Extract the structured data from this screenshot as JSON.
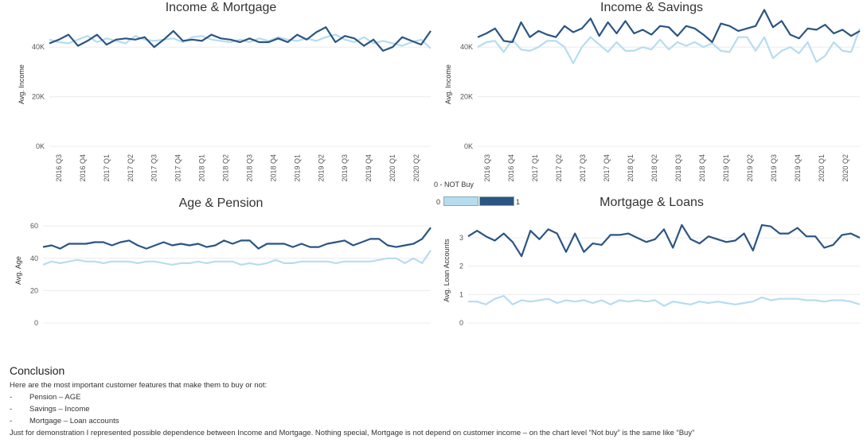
{
  "colors": {
    "buy": "#2b5583",
    "not_buy": "#b7dcf0",
    "grid": "#ececec"
  },
  "quarters": [
    "2016 Q3",
    "2016 Q4",
    "2017 Q1",
    "2017 Q2",
    "2017 Q3",
    "2017 Q4",
    "2018 Q1",
    "2018 Q2",
    "2018 Q3",
    "2018 Q4",
    "2019 Q1",
    "2019 Q2",
    "2019 Q3",
    "2019 Q4",
    "2020 Q1",
    "2020 Q2"
  ],
  "legend": {
    "title": "0 - NOT Buy",
    "min": "0",
    "max": "1"
  },
  "chart_data": [
    {
      "type": "line",
      "title": "Income & Mortgage",
      "ylabel": "Avg. Income",
      "yticks": [
        0,
        20000,
        40000
      ],
      "ytick_labels": [
        "0K",
        "20K",
        "40K"
      ],
      "ylim": [
        0,
        50000
      ],
      "series": [
        {
          "name": "1",
          "values": [
            41500,
            43000,
            45000,
            40500,
            42500,
            45000,
            41000,
            43000,
            43500,
            43000,
            44000,
            40000,
            43000,
            46500,
            42500,
            43000,
            42500,
            45000,
            43500,
            43000,
            42000,
            43500,
            42000,
            42000,
            43500,
            42000,
            45000,
            43000,
            46000,
            48000,
            42000,
            44500,
            43500,
            40500,
            43000,
            38500,
            40000,
            44000,
            42500,
            41000,
            46500
          ]
        },
        {
          "name": "0",
          "values": [
            43000,
            42000,
            41500,
            43000,
            44500,
            42000,
            43500,
            42500,
            41500,
            44500,
            43000,
            42500,
            43000,
            43500,
            42000,
            44000,
            44500,
            43000,
            42500,
            42000,
            43000,
            42000,
            43500,
            42500,
            44000,
            43000,
            42500,
            43500,
            42500,
            44000,
            45000,
            43000,
            42000,
            44000,
            41500,
            42500,
            41500,
            40500,
            42000,
            43000,
            39500
          ]
        }
      ]
    },
    {
      "type": "line",
      "title": "Income & Savings",
      "ylabel": "Avg. Income",
      "yticks": [
        0,
        20000,
        40000
      ],
      "ytick_labels": [
        "0K",
        "20K",
        "40K"
      ],
      "ylim": [
        0,
        50000
      ],
      "series": [
        {
          "name": "1",
          "values": [
            44000,
            45500,
            47500,
            42500,
            42000,
            50000,
            44000,
            46500,
            45000,
            44000,
            48500,
            46000,
            47500,
            51500,
            44500,
            50000,
            45500,
            50500,
            45500,
            47000,
            45000,
            48500,
            48000,
            44500,
            48500,
            47500,
            45000,
            42000,
            49500,
            48500,
            46500,
            47500,
            48500,
            55000,
            48000,
            50500,
            45000,
            43500,
            47500,
            47000,
            49000,
            45500,
            47000,
            44500,
            46500
          ]
        },
        {
          "name": "0",
          "values": [
            40000,
            42000,
            42500,
            38000,
            43000,
            39000,
            38500,
            40000,
            42500,
            42500,
            40000,
            33500,
            40000,
            44000,
            41000,
            38000,
            42000,
            38500,
            38500,
            40000,
            39000,
            43000,
            39000,
            42000,
            40500,
            42000,
            40000,
            41500,
            38500,
            38000,
            44000,
            44000,
            38500,
            44000,
            35500,
            38500,
            40000,
            37500,
            42000,
            34000,
            36500,
            42000,
            38500,
            38000,
            47500
          ]
        }
      ]
    },
    {
      "type": "line",
      "title": "Age & Pension",
      "ylabel": "Avg. Age",
      "yticks": [
        0,
        20,
        40,
        60
      ],
      "ytick_labels": [
        "0",
        "20",
        "40",
        "60"
      ],
      "ylim": [
        0,
        65
      ],
      "series": [
        {
          "name": "1",
          "values": [
            47,
            48,
            46,
            49,
            49,
            49,
            50,
            50,
            48,
            50,
            51,
            48,
            46,
            48,
            50,
            48,
            49,
            48,
            49,
            47,
            48,
            51,
            49,
            51,
            51,
            46,
            49,
            49,
            49,
            47,
            49,
            47,
            47,
            49,
            50,
            51,
            48,
            50,
            52,
            52,
            48,
            47,
            48,
            49,
            52,
            59
          ]
        },
        {
          "name": "0",
          "values": [
            36,
            38,
            37,
            38,
            39,
            38,
            38,
            37,
            38,
            38,
            38,
            37,
            38,
            38,
            37,
            36,
            37,
            37,
            38,
            37,
            38,
            38,
            38,
            36,
            37,
            36,
            37,
            39,
            37,
            37,
            38,
            38,
            38,
            38,
            37,
            38,
            38,
            38,
            38,
            39,
            40,
            40,
            37,
            40,
            37,
            45
          ]
        }
      ]
    },
    {
      "type": "line",
      "title": "Mortgage & Loans",
      "ylabel": "Avg. Loan Accounts",
      "yticks": [
        0,
        1,
        2,
        3
      ],
      "ytick_labels": [
        "0",
        "1",
        "2",
        "3"
      ],
      "ylim": [
        0,
        3.7
      ],
      "series": [
        {
          "name": "1",
          "values": [
            3.05,
            3.25,
            3.05,
            2.9,
            3.15,
            2.85,
            2.35,
            3.25,
            2.95,
            3.3,
            3.15,
            2.5,
            3.15,
            2.5,
            2.8,
            2.75,
            3.1,
            3.1,
            3.15,
            3.0,
            2.85,
            2.95,
            3.3,
            2.65,
            3.45,
            2.95,
            2.8,
            3.05,
            2.95,
            2.85,
            2.9,
            3.15,
            2.55,
            3.45,
            3.4,
            3.15,
            3.15,
            3.35,
            3.05,
            3.05,
            2.65,
            2.75,
            3.1,
            3.15,
            3.0
          ]
        },
        {
          "name": "0",
          "values": [
            0.75,
            0.75,
            0.65,
            0.85,
            0.95,
            0.65,
            0.8,
            0.75,
            0.8,
            0.85,
            0.7,
            0.8,
            0.75,
            0.8,
            0.7,
            0.8,
            0.65,
            0.8,
            0.75,
            0.8,
            0.75,
            0.8,
            0.6,
            0.75,
            0.7,
            0.65,
            0.75,
            0.7,
            0.75,
            0.7,
            0.65,
            0.7,
            0.75,
            0.9,
            0.8,
            0.85,
            0.85,
            0.85,
            0.8,
            0.8,
            0.75,
            0.8,
            0.8,
            0.75,
            0.65
          ]
        }
      ]
    }
  ],
  "conclusion": {
    "title": "Conclusion",
    "intro": "Here are the most important customer features that make them to buy or not:",
    "bullets": [
      {
        "dash": "-",
        "text": "Pension – AGE"
      },
      {
        "dash": "-",
        "text": "Savings – Income"
      },
      {
        "dash": "-",
        "text": "Mortgage – Loan accounts"
      }
    ],
    "note": "Just for demonstration I represented possible dependence between Income and Mortgage. Nothing special, Mortgage is not depend on customer income – on the chart level “Not buy” is the same like “Buy”"
  }
}
